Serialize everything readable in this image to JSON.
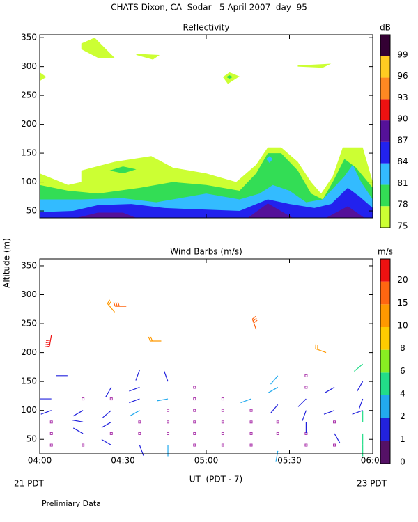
{
  "title": "CHATS Dixon, CA  Sodar   5 April 2007  day  95",
  "x_label": "UT  (PDT - 7)",
  "y_label": "Altitude (m)",
  "left_note": "21 PDT",
  "right_note": "23 PDT",
  "footer": "Prelimiary Data",
  "chart_data": [
    {
      "type": "contour",
      "title": "Reflectivity",
      "xlim": [
        4,
        6
      ],
      "xticks": [
        4,
        4.5,
        5,
        5.5,
        6
      ],
      "ylim": [
        38,
        355
      ],
      "yticks": [
        50,
        100,
        150,
        200,
        250,
        300,
        350
      ],
      "colorbar": {
        "label": "dB",
        "ticks": [
          75,
          78,
          81,
          84,
          87,
          90,
          93,
          96,
          99
        ],
        "colors": [
          "#ccff33",
          "#33dd55",
          "#33bbff",
          "#2222ee",
          "#551199",
          "#ee1111",
          "#ff8822",
          "#ffcc22",
          "#330033"
        ]
      },
      "contours": [
        {
          "level": 75,
          "x": [
            4.0,
            4.17,
            4.25,
            4.25,
            4.45,
            4.67,
            4.8,
            5.0,
            5.18,
            5.3,
            5.37,
            5.45,
            5.55,
            5.63,
            5.69,
            5.76,
            5.82,
            5.94,
            6.0,
            6.0,
            4.0
          ],
          "y": [
            115,
            95,
            100,
            120,
            135,
            145,
            125,
            115,
            100,
            130,
            160,
            160,
            135,
            100,
            80,
            110,
            160,
            160,
            100,
            38,
            38
          ]
        },
        {
          "level": 75,
          "x": [
            4.25,
            4.33,
            4.45,
            4.35,
            4.25
          ],
          "y": [
            340,
            350,
            315,
            315,
            330
          ]
        },
        {
          "level": 75,
          "x": [
            4.58,
            4.72,
            4.68,
            4.58
          ],
          "y": [
            322,
            320,
            312,
            320
          ]
        },
        {
          "level": 75,
          "x": [
            5.1,
            5.14,
            5.2,
            5.13,
            5.1
          ],
          "y": [
            282,
            290,
            283,
            270,
            282
          ]
        },
        {
          "level": 75,
          "x": [
            5.55,
            5.75,
            5.7,
            5.55
          ],
          "y": [
            302,
            305,
            298,
            300
          ]
        },
        {
          "level": 75,
          "x": [
            4.0,
            4.04,
            4.0
          ],
          "y": [
            290,
            282,
            275
          ]
        },
        {
          "level": 78,
          "x": [
            4.0,
            4.17,
            4.35,
            4.6,
            4.8,
            5.0,
            5.2,
            5.3,
            5.37,
            5.45,
            5.55,
            5.63,
            5.7,
            5.76,
            5.83,
            5.9,
            6.0,
            6.0,
            4.0
          ],
          "y": [
            95,
            85,
            80,
            90,
            100,
            95,
            85,
            115,
            150,
            150,
            120,
            80,
            70,
            100,
            140,
            125,
            90,
            38,
            38
          ]
        },
        {
          "level": 78,
          "x": [
            4.42,
            4.5,
            4.58,
            4.5,
            4.42
          ],
          "y": [
            120,
            127,
            122,
            115,
            120
          ]
        },
        {
          "level": 78,
          "x": [
            5.12,
            5.14,
            5.16,
            5.14
          ],
          "y": [
            282,
            285,
            282,
            279
          ]
        },
        {
          "level": 81,
          "x": [
            4.0,
            4.25,
            4.5,
            4.7,
            5.0,
            5.2,
            5.32,
            5.4,
            5.5,
            5.6,
            5.7,
            5.83,
            5.88,
            5.93,
            6.0,
            6.0,
            4.0
          ],
          "y": [
            70,
            70,
            72,
            65,
            80,
            70,
            80,
            95,
            85,
            65,
            70,
            110,
            130,
            100,
            70,
            38,
            38
          ]
        },
        {
          "level": 81,
          "x": [
            5.36,
            5.38,
            5.4,
            5.38
          ],
          "y": [
            140,
            145,
            140,
            133
          ]
        },
        {
          "level": 84,
          "x": [
            4.0,
            4.2,
            4.35,
            4.55,
            4.75,
            5.2,
            5.37,
            5.5,
            5.65,
            5.75,
            5.85,
            5.92,
            6.0,
            6.0,
            4.0
          ],
          "y": [
            48,
            50,
            60,
            62,
            55,
            50,
            70,
            62,
            55,
            62,
            90,
            75,
            55,
            38,
            38
          ]
        },
        {
          "level": 87,
          "x": [
            4.22,
            4.35,
            4.5,
            4.58
          ],
          "y": [
            38,
            47,
            47,
            38
          ]
        },
        {
          "level": 87,
          "x": [
            5.25,
            5.37,
            5.52
          ],
          "y": [
            38,
            63,
            38
          ]
        },
        {
          "level": 87,
          "x": [
            5.72,
            5.85,
            5.95
          ],
          "y": [
            38,
            58,
            38
          ]
        }
      ]
    },
    {
      "type": "barbs",
      "title": "Wind Barbs (m/s)",
      "xlim": [
        4,
        6
      ],
      "xticks": [
        {
          "value": 4,
          "label": "04:00"
        },
        {
          "value": 4.5,
          "label": "04:30"
        },
        {
          "value": 5,
          "label": "05:00"
        },
        {
          "value": 5.5,
          "label": "05:30"
        },
        {
          "value": 6,
          "label": "06:00"
        }
      ],
      "ylim": [
        25,
        362
      ],
      "yticks": [
        50,
        100,
        150,
        200,
        250,
        300,
        350
      ],
      "colorbar": {
        "label": "m/s",
        "ticks": [
          0,
          1,
          2,
          4,
          6,
          8,
          10,
          15,
          20
        ],
        "colors": [
          "#551166",
          "#2222dd",
          "#22aaee",
          "#22dd88",
          "#88ee22",
          "#ffcc00",
          "#ff9900",
          "#ff6611",
          "#ee1111"
        ]
      },
      "barbs": {
        "x": [
          4.07,
          4.07,
          4.07,
          4.07,
          4.07,
          4.1,
          4.07,
          4.26,
          4.26,
          4.26,
          4.26,
          4.26,
          4.43,
          4.43,
          4.43,
          4.43,
          4.43,
          4.43,
          4.45,
          4.52,
          4.6,
          4.6,
          4.6,
          4.6,
          4.6,
          4.6,
          4.6,
          4.77,
          4.77,
          4.77,
          4.77,
          4.77,
          4.77,
          4.73,
          4.93,
          4.93,
          4.93,
          4.93,
          4.93,
          4.93,
          5.1,
          5.1,
          5.1,
          5.1,
          5.1,
          5.27,
          5.27,
          5.27,
          5.27,
          5.27,
          5.3,
          5.43,
          5.43,
          5.43,
          5.43,
          5.43,
          5.43,
          5.6,
          5.6,
          5.6,
          5.6,
          5.6,
          5.6,
          5.6,
          5.77,
          5.77,
          5.77,
          5.77,
          5.77,
          5.72,
          5.94,
          5.94,
          5.94,
          5.94,
          5.94,
          5.94,
          5.94
        ],
        "y": [
          40,
          60,
          80,
          100,
          120,
          160,
          230,
          40,
          60,
          80,
          100,
          120,
          40,
          60,
          80,
          100,
          120,
          140,
          270,
          280,
          40,
          60,
          80,
          100,
          120,
          140,
          170,
          40,
          60,
          80,
          100,
          120,
          150,
          220,
          40,
          60,
          80,
          100,
          120,
          140,
          40,
          60,
          80,
          100,
          120,
          40,
          60,
          80,
          100,
          120,
          240,
          30,
          60,
          80,
          110,
          140,
          160,
          40,
          60,
          80,
          100,
          120,
          140,
          160,
          40,
          60,
          80,
          100,
          140,
          200,
          40,
          60,
          80,
          100,
          120,
          150,
          180
        ],
        "speed": [
          0,
          0,
          0,
          1,
          1,
          1,
          20,
          0,
          1,
          1,
          1,
          0,
          1,
          0,
          1,
          1,
          0,
          1,
          10,
          15,
          1,
          0,
          0,
          2,
          1,
          1,
          1,
          2,
          0,
          0,
          0,
          2,
          1,
          10,
          0,
          0,
          0,
          0,
          0,
          0,
          0,
          0,
          0,
          0,
          0,
          0,
          0,
          0,
          0,
          2,
          15,
          2,
          0,
          0,
          1,
          2,
          2,
          0,
          0,
          1,
          1,
          1,
          0,
          0,
          0,
          1,
          0,
          1,
          1,
          10,
          4,
          4,
          4,
          1,
          1,
          1,
          4
        ],
        "direction": [
          0,
          0,
          0,
          250,
          270,
          90,
          190,
          0,
          300,
          280,
          240,
          0,
          300,
          0,
          240,
          230,
          0,
          210,
          320,
          270,
          160,
          0,
          0,
          240,
          250,
          250,
          200,
          180,
          0,
          0,
          0,
          260,
          340,
          270,
          0,
          0,
          0,
          0,
          0,
          0,
          0,
          0,
          0,
          0,
          0,
          0,
          0,
          0,
          0,
          250,
          340,
          190,
          0,
          0,
          220,
          240,
          220,
          0,
          0,
          180,
          200,
          225,
          0,
          0,
          0,
          150,
          0,
          250,
          240,
          290,
          180,
          180,
          0,
          250,
          200,
          210,
          230
        ]
      }
    }
  ]
}
